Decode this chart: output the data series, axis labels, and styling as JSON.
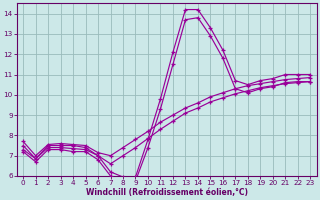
{
  "xlabel": "Windchill (Refroidissement éolien,°C)",
  "bg_color": "#cce8e8",
  "line_color": "#990099",
  "grid_color": "#99bbbb",
  "axis_color": "#660066",
  "text_color": "#660066",
  "xlim": [
    -0.5,
    23.5
  ],
  "ylim": [
    6,
    14.5
  ],
  "xticks": [
    0,
    1,
    2,
    3,
    4,
    5,
    6,
    7,
    8,
    9,
    10,
    11,
    12,
    13,
    14,
    15,
    16,
    17,
    18,
    19,
    20,
    21,
    22,
    23
  ],
  "yticks": [
    6,
    7,
    8,
    9,
    10,
    11,
    12,
    13,
    14
  ],
  "line1_x": [
    0,
    1,
    2,
    3,
    4,
    5,
    6,
    7,
    8,
    9,
    10,
    11,
    12,
    13,
    14,
    15,
    16,
    17,
    18,
    19,
    20,
    21,
    22,
    23
  ],
  "line1_y": [
    7.3,
    6.85,
    7.5,
    7.5,
    7.5,
    7.4,
    7.0,
    6.2,
    5.95,
    5.95,
    7.8,
    9.8,
    12.1,
    14.2,
    14.2,
    13.3,
    12.2,
    10.7,
    10.5,
    10.7,
    10.8,
    11.0,
    11.0,
    11.0
  ],
  "line2_x": [
    0,
    1,
    2,
    3,
    4,
    5,
    6,
    7,
    8,
    9,
    10,
    11,
    12,
    13,
    14,
    15,
    16,
    17,
    18,
    19,
    20,
    21,
    22,
    23
  ],
  "line2_y": [
    7.7,
    7.0,
    7.55,
    7.6,
    7.55,
    7.5,
    7.15,
    7.0,
    7.4,
    7.8,
    8.2,
    8.65,
    9.0,
    9.35,
    9.6,
    9.9,
    10.1,
    10.3,
    10.45,
    10.55,
    10.65,
    10.75,
    10.8,
    10.85
  ],
  "line3_x": [
    0,
    1,
    2,
    3,
    4,
    5,
    6,
    7,
    8,
    9,
    10,
    11,
    12,
    13,
    14,
    15,
    16,
    17,
    18,
    19,
    20,
    21,
    22,
    23
  ],
  "line3_y": [
    7.5,
    6.85,
    7.4,
    7.4,
    7.35,
    7.3,
    7.0,
    6.6,
    7.0,
    7.4,
    7.85,
    8.3,
    8.7,
    9.1,
    9.35,
    9.65,
    9.85,
    10.05,
    10.2,
    10.35,
    10.45,
    10.55,
    10.6,
    10.65
  ],
  "line4_x": [
    0,
    1,
    2,
    3,
    4,
    5,
    6,
    7,
    8,
    9,
    10,
    11,
    12,
    13,
    14,
    15,
    16,
    17,
    18,
    19,
    20,
    21,
    22,
    23
  ],
  "line4_y": [
    7.2,
    6.7,
    7.3,
    7.3,
    7.2,
    7.2,
    6.8,
    6.0,
    5.8,
    5.75,
    7.4,
    9.3,
    11.5,
    13.7,
    13.8,
    12.9,
    11.8,
    10.3,
    10.1,
    10.3,
    10.4,
    10.6,
    10.65,
    10.65
  ]
}
